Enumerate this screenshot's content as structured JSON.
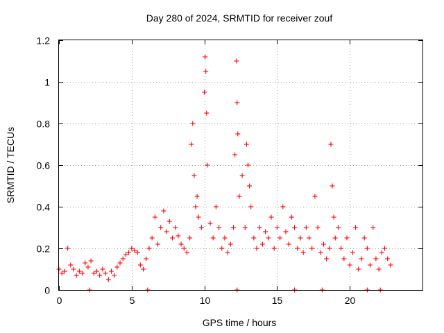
{
  "chart_data": {
    "type": "scatter",
    "title": "Day 280 of 2024, SRMTID for receiver zouf",
    "xlabel": "GPS time / hours",
    "ylabel": "SRMTID / TECUs",
    "xlim": [
      0,
      25
    ],
    "ylim": [
      0,
      1.2
    ],
    "xticks": [
      0,
      5,
      10,
      15,
      20
    ],
    "xtick_labels": [
      "0",
      "5",
      "10",
      "15",
      "20"
    ],
    "yticks": [
      0,
      0.2,
      0.4,
      0.6,
      0.8,
      1.0,
      1.2
    ],
    "ytick_labels": [
      "0",
      "0.2",
      "0.4",
      "0.6",
      "0.8",
      "1",
      "1.2"
    ],
    "grid": true,
    "marker": "+",
    "color": "#ff0000",
    "series": [
      {
        "name": "SRMTID",
        "x": [
          0.0,
          0.2,
          0.4,
          0.6,
          0.8,
          1.0,
          1.2,
          1.4,
          1.6,
          1.8,
          2.0,
          2.2,
          2.4,
          2.6,
          2.8,
          3.0,
          3.2,
          3.4,
          3.6,
          3.8,
          4.0,
          4.2,
          4.4,
          4.6,
          4.8,
          5.0,
          5.2,
          5.4,
          5.6,
          5.8,
          6.0,
          6.2,
          6.4,
          6.6,
          6.8,
          7.0,
          7.2,
          7.4,
          7.6,
          7.8,
          8.0,
          8.2,
          8.4,
          8.6,
          8.8,
          9.0,
          9.1,
          9.2,
          9.3,
          9.4,
          9.5,
          9.6,
          9.8,
          10.0,
          10.05,
          10.1,
          10.15,
          10.2,
          10.4,
          10.6,
          10.8,
          11.0,
          11.2,
          11.4,
          11.6,
          11.8,
          12.0,
          12.1,
          12.2,
          12.25,
          12.3,
          12.4,
          12.6,
          12.8,
          12.9,
          13.0,
          13.1,
          13.2,
          13.4,
          13.6,
          13.8,
          14.0,
          14.2,
          14.4,
          14.6,
          14.8,
          15.0,
          15.2,
          15.4,
          15.6,
          15.8,
          16.0,
          16.2,
          16.4,
          16.6,
          16.8,
          17.0,
          17.2,
          17.4,
          17.6,
          17.8,
          18.0,
          18.2,
          18.4,
          18.6,
          18.7,
          18.8,
          18.9,
          19.0,
          19.2,
          19.4,
          19.6,
          19.8,
          20.0,
          20.2,
          20.4,
          20.6,
          20.8,
          21.0,
          21.2,
          21.4,
          21.6,
          21.8,
          22.0,
          22.2,
          22.4,
          22.6,
          22.8,
          2.1,
          6.1,
          12.25,
          16.2,
          18.1,
          21.2,
          22.1
        ],
        "y": [
          0.1,
          0.08,
          0.09,
          0.2,
          0.12,
          0.1,
          0.07,
          0.09,
          0.08,
          0.13,
          0.11,
          0.14,
          0.08,
          0.09,
          0.07,
          0.1,
          0.08,
          0.05,
          0.09,
          0.07,
          0.11,
          0.13,
          0.15,
          0.17,
          0.18,
          0.2,
          0.19,
          0.18,
          0.12,
          0.1,
          0.15,
          0.2,
          0.25,
          0.35,
          0.22,
          0.3,
          0.38,
          0.28,
          0.33,
          0.25,
          0.3,
          0.26,
          0.22,
          0.2,
          0.18,
          0.25,
          0.7,
          0.8,
          0.55,
          0.4,
          0.45,
          0.35,
          0.3,
          0.95,
          1.12,
          1.05,
          0.85,
          0.6,
          0.32,
          0.25,
          0.4,
          0.3,
          0.2,
          0.25,
          0.18,
          0.22,
          0.3,
          0.65,
          1.1,
          0.9,
          0.75,
          0.45,
          0.55,
          0.3,
          0.7,
          0.6,
          0.5,
          0.4,
          0.25,
          0.2,
          0.3,
          0.22,
          0.28,
          0.25,
          0.35,
          0.2,
          0.3,
          0.25,
          0.4,
          0.28,
          0.22,
          0.35,
          0.3,
          0.2,
          0.25,
          0.18,
          0.3,
          0.25,
          0.2,
          0.45,
          0.3,
          0.18,
          0.22,
          0.15,
          0.2,
          0.7,
          0.5,
          0.35,
          0.25,
          0.3,
          0.2,
          0.15,
          0.25,
          0.12,
          0.18,
          0.3,
          0.1,
          0.15,
          0.25,
          0.2,
          0.12,
          0.3,
          0.15,
          0.1,
          0.18,
          0.2,
          0.15,
          0.12,
          0.0,
          0.0,
          0.0,
          0.0,
          0.0,
          0.0,
          0.0
        ]
      }
    ]
  }
}
